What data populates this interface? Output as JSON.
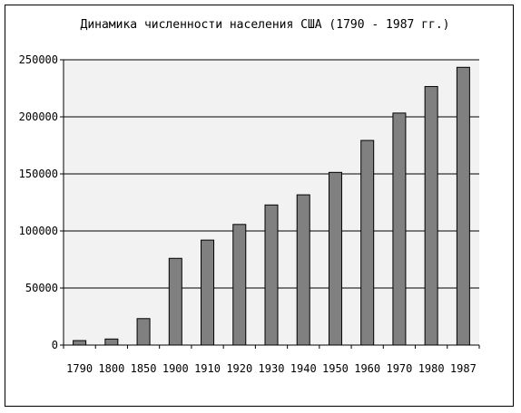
{
  "chart_data": {
    "type": "bar",
    "title": "Динамика численности населения США (1790 - 1987 гг.)",
    "xlabel": "",
    "ylabel": "",
    "categories": [
      "1790",
      "1800",
      "1850",
      "1900",
      "1910",
      "1920",
      "1930",
      "1940",
      "1950",
      "1960",
      "1970",
      "1980",
      "1987"
    ],
    "values": [
      3929,
      5308,
      23192,
      75995,
      91972,
      105711,
      122775,
      131669,
      151326,
      179323,
      203302,
      226546,
      243400
    ],
    "ylim": [
      0,
      250000
    ],
    "yticks": [
      "0",
      "50000",
      "100000",
      "150000",
      "200000",
      "250000"
    ],
    "grid": true,
    "legend": "none",
    "colors": {
      "bar_fill": "#808080",
      "bar_stroke": "#000000",
      "plot_background": "#f2f2f2",
      "grid": "#000000"
    }
  }
}
